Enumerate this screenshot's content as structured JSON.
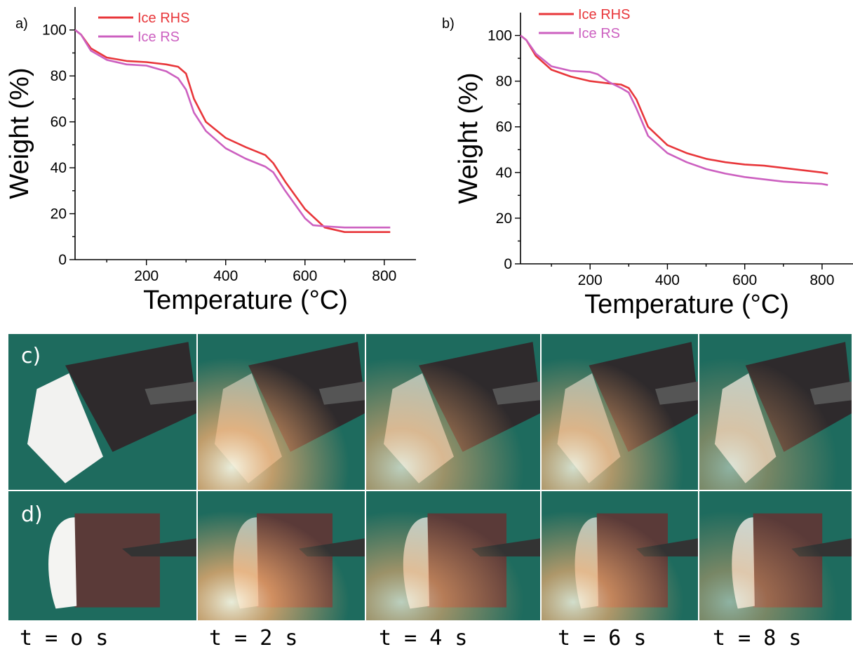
{
  "charts": [
    {
      "panel_label": "a)",
      "xlabel": "Temperature (°C)",
      "ylabel": "Weight (%)",
      "xlim": [
        20,
        880
      ],
      "ylim": [
        0,
        110
      ],
      "xticks": [
        200,
        400,
        600,
        800
      ],
      "yticks": [
        0,
        20,
        40,
        60,
        80,
        100
      ],
      "legend": [
        "Ice RHS",
        "Ice RS"
      ]
    },
    {
      "panel_label": "b)",
      "xlabel": "Temperature (°C)",
      "ylabel": "Weight (%)",
      "xlim": [
        20,
        880
      ],
      "ylim": [
        0,
        110
      ],
      "xticks": [
        200,
        400,
        600,
        800
      ],
      "yticks": [
        0,
        20,
        40,
        60,
        80,
        100
      ],
      "legend": [
        "Ice RHS",
        "Ice RS"
      ]
    }
  ],
  "chart_data": [
    {
      "type": "line",
      "panel": "a)",
      "xlabel": "Temperature (°C)",
      "ylabel": "Weight (%)",
      "xlim": [
        20,
        880
      ],
      "ylim": [
        0,
        110
      ],
      "grid": false,
      "legend_position": "top-left",
      "series": [
        {
          "name": "Ice RHS",
          "color": "#e8363a",
          "x": [
            20,
            35,
            60,
            100,
            150,
            200,
            250,
            280,
            300,
            320,
            350,
            400,
            450,
            500,
            520,
            550,
            600,
            650,
            700,
            750,
            800,
            815
          ],
          "y": [
            100,
            98,
            92,
            88,
            86.5,
            86,
            85,
            84,
            81,
            70,
            60,
            53,
            49,
            45.5,
            42,
            34,
            22,
            14,
            12,
            12,
            12,
            12
          ]
        },
        {
          "name": "Ice RS",
          "color": "#cc60c0",
          "x": [
            20,
            35,
            60,
            100,
            150,
            200,
            250,
            280,
            300,
            320,
            350,
            400,
            450,
            500,
            520,
            550,
            600,
            620,
            650,
            700,
            750,
            800,
            815
          ],
          "y": [
            100,
            98,
            91,
            87,
            85,
            84.5,
            82,
            79,
            74,
            64,
            56,
            48.5,
            44,
            40.5,
            38,
            30,
            18,
            15,
            14.5,
            14,
            14,
            14,
            14
          ]
        }
      ]
    },
    {
      "type": "line",
      "panel": "b)",
      "xlabel": "Temperature (°C)",
      "ylabel": "Weight (%)",
      "xlim": [
        20,
        880
      ],
      "ylim": [
        0,
        110
      ],
      "grid": false,
      "legend_position": "top-left",
      "series": [
        {
          "name": "Ice RHS",
          "color": "#e8363a",
          "x": [
            20,
            35,
            60,
            100,
            150,
            200,
            250,
            280,
            300,
            320,
            350,
            400,
            450,
            500,
            550,
            600,
            650,
            700,
            750,
            800,
            815
          ],
          "y": [
            100,
            98,
            91,
            85,
            82,
            80,
            79,
            78.5,
            77,
            72,
            60,
            52,
            48.5,
            46,
            44.5,
            43.5,
            43,
            42,
            41,
            40,
            39.5
          ]
        },
        {
          "name": "Ice RS",
          "color": "#cc60c0",
          "x": [
            20,
            35,
            60,
            100,
            150,
            200,
            220,
            250,
            280,
            300,
            320,
            350,
            400,
            450,
            500,
            550,
            600,
            650,
            700,
            750,
            800,
            815
          ],
          "y": [
            100,
            98,
            92,
            86.5,
            84.5,
            84,
            83,
            79.5,
            77,
            75,
            68,
            56,
            48.5,
            44.5,
            41.5,
            39.5,
            38,
            37,
            36,
            35.5,
            35,
            34.5
          ]
        }
      ]
    }
  ],
  "photos": {
    "row_c_label": "c)",
    "row_d_label": "d)",
    "background_color": "#1e6b5e",
    "flame_color": "#ffb070",
    "time_labels": [
      "t = o s",
      "t = 2 s",
      "t = 4 s",
      "t = 6 s",
      "t = 8 s"
    ]
  }
}
